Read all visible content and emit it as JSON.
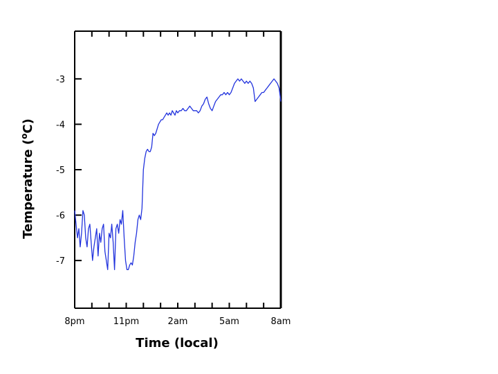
{
  "chart_data": {
    "type": "line",
    "title": "",
    "xlabel": "Time (local)",
    "ylabel": "Temperature (oC)",
    "ylabel_parts": [
      "Temperature (",
      "o",
      "C)"
    ],
    "x_unit": "hours since 8pm",
    "xlim": [
      0,
      12
    ],
    "ylim": [
      -8.05,
      -1.95
    ],
    "x_ticks": [
      {
        "value": 0,
        "label": "8pm"
      },
      {
        "value": 3,
        "label": "11pm"
      },
      {
        "value": 6,
        "label": "2am"
      },
      {
        "value": 9,
        "label": "5am"
      },
      {
        "value": 12,
        "label": "8am"
      }
    ],
    "x_minor_ticks": [
      0,
      1,
      2,
      3,
      4,
      5,
      6,
      7,
      8,
      9,
      10,
      11,
      12
    ],
    "y_ticks": [
      {
        "value": -3,
        "label": "-3"
      },
      {
        "value": -4,
        "label": "-4"
      },
      {
        "value": -5,
        "label": "-5"
      },
      {
        "value": -6,
        "label": "-6"
      },
      {
        "value": -7,
        "label": "-7"
      }
    ],
    "grid": false,
    "series": [
      {
        "color": "#2233dd",
        "x": [
          0.0,
          0.08,
          0.16,
          0.24,
          0.32,
          0.4,
          0.48,
          0.56,
          0.64,
          0.72,
          0.8,
          0.88,
          0.96,
          1.04,
          1.12,
          1.2,
          1.28,
          1.36,
          1.44,
          1.52,
          1.6,
          1.68,
          1.76,
          1.84,
          1.92,
          2.0,
          2.08,
          2.16,
          2.24,
          2.32,
          2.4,
          2.48,
          2.56,
          2.64,
          2.72,
          2.8,
          2.88,
          2.96,
          3.04,
          3.12,
          3.2,
          3.28,
          3.36,
          3.44,
          3.52,
          3.6,
          3.68,
          3.76,
          3.84,
          3.92,
          4.0,
          4.08,
          4.16,
          4.24,
          4.32,
          4.4,
          4.48,
          4.56,
          4.64,
          4.72,
          4.8,
          4.88,
          4.96,
          5.04,
          5.12,
          5.2,
          5.28,
          5.36,
          5.44,
          5.52,
          5.6,
          5.68,
          5.76,
          5.84,
          5.92,
          6.0,
          6.1,
          6.2,
          6.3,
          6.4,
          6.5,
          6.6,
          6.7,
          6.8,
          6.9,
          7.0,
          7.1,
          7.2,
          7.3,
          7.4,
          7.5,
          7.6,
          7.7,
          7.8,
          7.9,
          8.0,
          8.1,
          8.2,
          8.3,
          8.4,
          8.5,
          8.6,
          8.7,
          8.8,
          8.9,
          9.0,
          9.1,
          9.2,
          9.3,
          9.4,
          9.5,
          9.6,
          9.7,
          9.8,
          9.9,
          10.0,
          10.1,
          10.2,
          10.3,
          10.4,
          10.5,
          10.6,
          10.7,
          10.8,
          10.9,
          11.0,
          11.1,
          11.2,
          11.3,
          11.4,
          11.5,
          11.6,
          11.7,
          11.8,
          11.9,
          12.0
        ],
        "y": [
          -5.9,
          -6.2,
          -6.5,
          -6.3,
          -6.7,
          -6.4,
          -5.9,
          -6.0,
          -6.5,
          -6.7,
          -6.3,
          -6.2,
          -6.6,
          -7.0,
          -6.7,
          -6.5,
          -6.3,
          -6.9,
          -6.4,
          -6.6,
          -6.3,
          -6.2,
          -6.8,
          -7.0,
          -7.2,
          -6.4,
          -6.5,
          -6.2,
          -6.6,
          -7.2,
          -6.3,
          -6.2,
          -6.4,
          -6.1,
          -6.2,
          -5.9,
          -6.5,
          -7.0,
          -7.2,
          -7.2,
          -7.1,
          -7.05,
          -7.1,
          -6.9,
          -6.6,
          -6.4,
          -6.1,
          -6.0,
          -6.1,
          -5.85,
          -5.0,
          -4.75,
          -4.6,
          -4.55,
          -4.6,
          -4.6,
          -4.5,
          -4.2,
          -4.25,
          -4.2,
          -4.1,
          -4.0,
          -3.95,
          -3.9,
          -3.9,
          -3.85,
          -3.8,
          -3.75,
          -3.8,
          -3.75,
          -3.8,
          -3.7,
          -3.75,
          -3.8,
          -3.7,
          -3.75,
          -3.7,
          -3.7,
          -3.65,
          -3.7,
          -3.7,
          -3.65,
          -3.6,
          -3.65,
          -3.7,
          -3.7,
          -3.7,
          -3.75,
          -3.7,
          -3.6,
          -3.55,
          -3.45,
          -3.4,
          -3.55,
          -3.65,
          -3.7,
          -3.6,
          -3.5,
          -3.45,
          -3.4,
          -3.35,
          -3.35,
          -3.3,
          -3.35,
          -3.3,
          -3.35,
          -3.3,
          -3.2,
          -3.1,
          -3.05,
          -3.0,
          -3.05,
          -3.0,
          -3.05,
          -3.1,
          -3.05,
          -3.1,
          -3.05,
          -3.1,
          -3.2,
          -3.5,
          -3.45,
          -3.4,
          -3.35,
          -3.3,
          -3.3,
          -3.25,
          -3.2,
          -3.15,
          -3.1,
          -3.05,
          -3.0,
          -3.05,
          -3.1,
          -3.2,
          -3.5
        ]
      }
    ]
  }
}
